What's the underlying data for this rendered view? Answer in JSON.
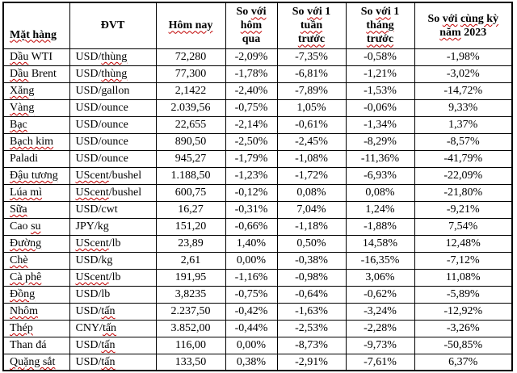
{
  "colors": {
    "background": "#ffffff",
    "text": "#000000",
    "border": "#000000",
    "spellcheck_underline": "#c00000"
  },
  "table": {
    "columns": [
      {
        "id": "name",
        "label": "Mặt hàng",
        "lines": [
          [
            [
              "Mặt hàng",
              true
            ]
          ]
        ]
      },
      {
        "id": "unit",
        "label": "ĐVT",
        "lines": [
          [
            [
              "ĐVT",
              false
            ]
          ]
        ]
      },
      {
        "id": "today",
        "label": "Hôm nay",
        "lines": [
          [
            [
              "Hôm nay",
              true
            ]
          ]
        ]
      },
      {
        "id": "vs_yesterday",
        "label": "So với hôm qua",
        "lines": [
          [
            [
              "So ",
              false
            ],
            [
              "với",
              true
            ]
          ],
          [
            [
              "hôm",
              true
            ]
          ],
          [
            [
              "qua",
              false
            ]
          ]
        ]
      },
      {
        "id": "vs_week",
        "label": "So với 1 tuần trước",
        "lines": [
          [
            [
              "So ",
              false
            ],
            [
              "với",
              true
            ],
            [
              " 1",
              false
            ]
          ],
          [
            [
              "tuần",
              true
            ]
          ],
          [
            [
              "trước",
              true
            ]
          ]
        ]
      },
      {
        "id": "vs_month",
        "label": "So với 1 tháng trước",
        "lines": [
          [
            [
              "So ",
              false
            ],
            [
              "với",
              true
            ],
            [
              " 1",
              false
            ]
          ],
          [
            [
              "tháng",
              true
            ]
          ],
          [
            [
              "trước",
              true
            ]
          ]
        ]
      },
      {
        "id": "vs_year",
        "label": "So với cùng kỳ năm 2023",
        "lines": [
          [
            [
              "So ",
              false
            ],
            [
              "với",
              true
            ],
            [
              " ",
              false
            ],
            [
              "cùng kỳ",
              true
            ]
          ],
          [
            [
              "năm",
              true
            ],
            [
              " 2023",
              false
            ]
          ]
        ]
      }
    ],
    "rows": [
      {
        "name": [
          [
            "Dầu",
            true
          ],
          [
            " WTI",
            false
          ]
        ],
        "unit": [
          [
            "USD/",
            false
          ],
          [
            "thùng",
            true
          ]
        ],
        "today": "72,280",
        "vs_yesterday": "-2,09%",
        "vs_week": "-7,35%",
        "vs_month": "-0,58%",
        "vs_year": "-1,98%"
      },
      {
        "name": [
          [
            "Dầu",
            true
          ],
          [
            " Brent",
            false
          ]
        ],
        "unit": [
          [
            "USD/",
            false
          ],
          [
            "thùng",
            true
          ]
        ],
        "today": "77,300",
        "vs_yesterday": "-1,78%",
        "vs_week": "-6,81%",
        "vs_month": "-1,21%",
        "vs_year": "-3,02%"
      },
      {
        "name": [
          [
            "Xăng",
            true
          ]
        ],
        "unit": [
          [
            "USD/gallon",
            false
          ]
        ],
        "today": "2,1422",
        "vs_yesterday": "-2,40%",
        "vs_week": "-7,89%",
        "vs_month": "-1,53%",
        "vs_year": "-14,72%"
      },
      {
        "name": [
          [
            "Vàng",
            true
          ]
        ],
        "unit": [
          [
            "USD/ounce",
            false
          ]
        ],
        "today": "2.039,56",
        "vs_yesterday": "-0,75%",
        "vs_week": "1,05%",
        "vs_month": "-0,06%",
        "vs_year": "9,33%"
      },
      {
        "name": [
          [
            "Bạc",
            true
          ]
        ],
        "unit": [
          [
            "USD/ounce",
            false
          ]
        ],
        "today": "22,655",
        "vs_yesterday": "-2,14%",
        "vs_week": "-0,61%",
        "vs_month": "-1,34%",
        "vs_year": "1,37%"
      },
      {
        "name": [
          [
            "Bạch kim",
            true
          ]
        ],
        "unit": [
          [
            "USD/ounce",
            false
          ]
        ],
        "today": "890,50",
        "vs_yesterday": "-2,50%",
        "vs_week": "-2,45%",
        "vs_month": "-8,29%",
        "vs_year": "-8,57%"
      },
      {
        "name": [
          [
            "Paladi",
            false
          ]
        ],
        "unit": [
          [
            "USD/ounce",
            false
          ]
        ],
        "today": "945,27",
        "vs_yesterday": "-1,79%",
        "vs_week": "-1,08%",
        "vs_month": "-11,36%",
        "vs_year": "-41,79%"
      },
      {
        "name": [
          [
            "Đậu tương",
            true
          ]
        ],
        "unit": [
          [
            "UScent",
            true
          ],
          [
            "/bushel",
            false
          ]
        ],
        "today": "1.188,50",
        "vs_yesterday": "-1,23%",
        "vs_week": "-1,72%",
        "vs_month": "-6,93%",
        "vs_year": "-22,09%"
      },
      {
        "name": [
          [
            "Lúa mì",
            true
          ]
        ],
        "unit": [
          [
            "UScent",
            true
          ],
          [
            "/bushel",
            false
          ]
        ],
        "today": "600,75",
        "vs_yesterday": "-0,12%",
        "vs_week": "0,08%",
        "vs_month": "0,08%",
        "vs_year": "-21,80%"
      },
      {
        "name": [
          [
            "Sữa",
            true
          ]
        ],
        "unit": [
          [
            "USD/cwt",
            false
          ]
        ],
        "today": "16,27",
        "vs_yesterday": "-0,31%",
        "vs_week": "7,04%",
        "vs_month": "1,24%",
        "vs_year": "-9,21%"
      },
      {
        "name": [
          [
            "Cao ",
            false
          ],
          [
            "su",
            true
          ]
        ],
        "unit": [
          [
            "JPY/kg",
            false
          ]
        ],
        "today": "151,20",
        "vs_yesterday": "-0,66%",
        "vs_week": "-1,18%",
        "vs_month": "-1,88%",
        "vs_year": "7,54%"
      },
      {
        "name": [
          [
            "Đường",
            true
          ]
        ],
        "unit": [
          [
            "UScent",
            true
          ],
          [
            "/lb",
            false
          ]
        ],
        "today": "23,89",
        "vs_yesterday": "1,40%",
        "vs_week": "0,50%",
        "vs_month": "14,58%",
        "vs_year": "12,48%"
      },
      {
        "name": [
          [
            "Chè",
            true
          ]
        ],
        "unit": [
          [
            "USD/kg",
            false
          ]
        ],
        "today": "2,61",
        "vs_yesterday": "0,00%",
        "vs_week": "-0,38%",
        "vs_month": "-16,35%",
        "vs_year": "-7,12%"
      },
      {
        "name": [
          [
            "Cà phê",
            true
          ]
        ],
        "unit": [
          [
            "UScent",
            true
          ],
          [
            "/lb",
            false
          ]
        ],
        "today": "191,95",
        "vs_yesterday": "-1,16%",
        "vs_week": "-0,98%",
        "vs_month": "3,06%",
        "vs_year": "11,08%"
      },
      {
        "name": [
          [
            "Đồng",
            true
          ]
        ],
        "unit": [
          [
            "USD/lb",
            false
          ]
        ],
        "today": "3,8235",
        "vs_yesterday": "-0,75%",
        "vs_week": "-0,64%",
        "vs_month": "-0,62%",
        "vs_year": "-5,89%"
      },
      {
        "name": [
          [
            "Nhôm",
            true
          ]
        ],
        "unit": [
          [
            "USD/",
            false
          ],
          [
            "tấn",
            true
          ]
        ],
        "today": "2.237,50",
        "vs_yesterday": "-0,42%",
        "vs_week": "-1,63%",
        "vs_month": "-3,24%",
        "vs_year": "-12,92%"
      },
      {
        "name": [
          [
            "Thép",
            true
          ]
        ],
        "unit": [
          [
            "CNY/",
            false
          ],
          [
            "tấn",
            true
          ]
        ],
        "today": "3.852,00",
        "vs_yesterday": "-0,44%",
        "vs_week": "-2,53%",
        "vs_month": "-2,28%",
        "vs_year": "-3,26%"
      },
      {
        "name": [
          [
            "Than đá",
            false
          ]
        ],
        "unit": [
          [
            "USD/",
            false
          ],
          [
            "tấn",
            true
          ]
        ],
        "today": "116,00",
        "vs_yesterday": "0,00%",
        "vs_week": "-8,73%",
        "vs_month": "-9,73%",
        "vs_year": "-50,85%"
      },
      {
        "name": [
          [
            "Quặng sắt",
            true
          ]
        ],
        "unit": [
          [
            "USD/",
            false
          ],
          [
            "tấn",
            true
          ]
        ],
        "today": "133,50",
        "vs_yesterday": "0,38%",
        "vs_week": "-2,91%",
        "vs_month": "-7,61%",
        "vs_year": "6,37%"
      }
    ]
  }
}
